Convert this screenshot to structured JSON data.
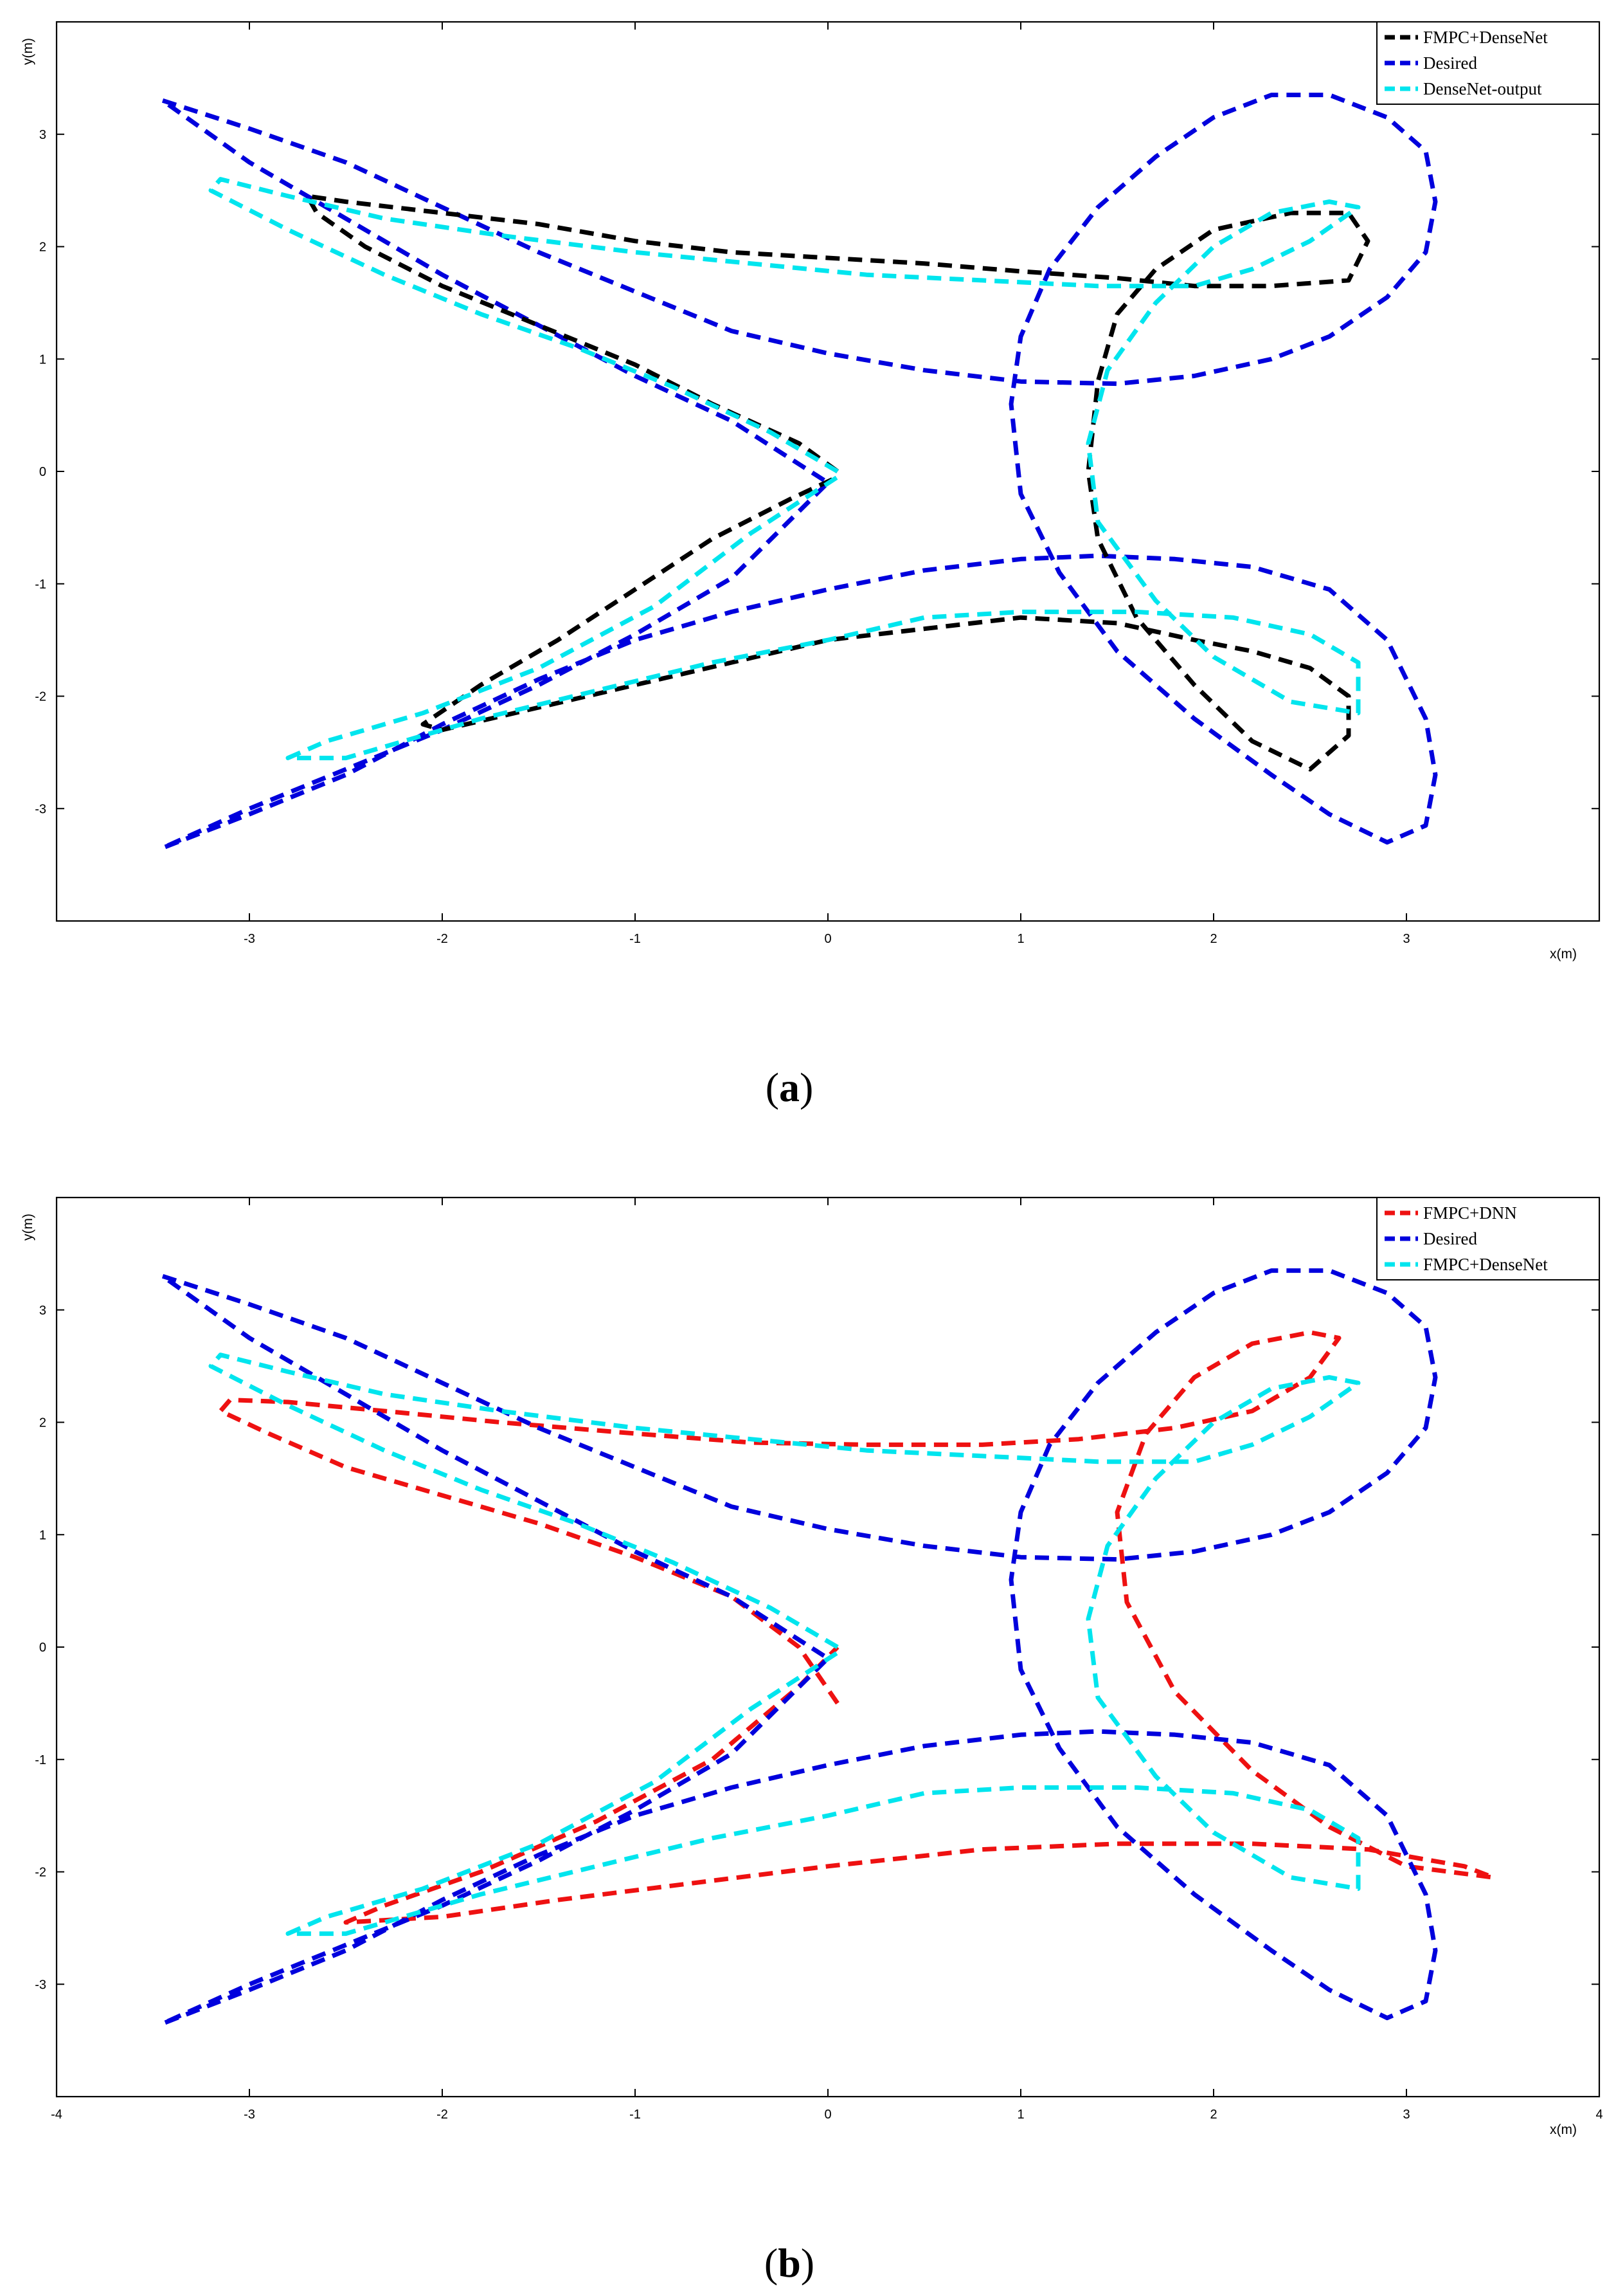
{
  "panels": [
    {
      "label_open": "(",
      "label_letter": "a",
      "label_close": ")"
    },
    {
      "label_open": "(",
      "label_letter": "b",
      "label_close": ")"
    }
  ],
  "chart_data": [
    {
      "type": "line",
      "xlabel": "x(m)",
      "ylabel": "y(m)",
      "xlim": [
        -4,
        4
      ],
      "ylim": [
        -4,
        4
      ],
      "xticks": [
        -3,
        -2,
        -1,
        0,
        1,
        2,
        3
      ],
      "yticks": [
        -3,
        -2,
        -1,
        0,
        1,
        2,
        3
      ],
      "legend_position": "top-right",
      "grid": false,
      "series": [
        {
          "name": "Desired",
          "color": "#0000dd",
          "x": [
            -3.45,
            -3.0,
            -2.5,
            -2.0,
            -1.5,
            -1.0,
            -0.5,
            0.0,
            0.5,
            1.0,
            1.5,
            1.9,
            2.3,
            2.6,
            2.9,
            3.1,
            3.15,
            3.1,
            2.9,
            2.6,
            2.3,
            2.0,
            1.7,
            1.4,
            1.15,
            1.0,
            0.95,
            1.0,
            1.2,
            1.5,
            1.9,
            2.3,
            2.6,
            2.9,
            3.1,
            3.15,
            3.1,
            2.9,
            2.6,
            2.2,
            1.8,
            1.4,
            1.0,
            0.5,
            0.0,
            -0.5,
            -1.0,
            -1.5,
            -2.0,
            -2.5,
            -3.0,
            -3.45,
            -3.0,
            -2.5,
            -2.0,
            -1.5,
            -1.0,
            -0.5,
            0.0,
            -0.5,
            -1.0,
            -1.5,
            -2.0,
            -2.5,
            -3.0,
            -3.45
          ],
          "y": [
            3.3,
            3.05,
            2.75,
            2.35,
            1.95,
            1.6,
            1.25,
            1.05,
            0.9,
            0.8,
            0.78,
            0.85,
            1.0,
            1.2,
            1.55,
            1.95,
            2.4,
            2.85,
            3.15,
            3.35,
            3.35,
            3.15,
            2.8,
            2.35,
            1.8,
            1.2,
            0.6,
            -0.2,
            -0.9,
            -1.6,
            -2.2,
            -2.7,
            -3.05,
            -3.3,
            -3.15,
            -2.7,
            -2.2,
            -1.5,
            -1.05,
            -0.85,
            -0.78,
            -0.75,
            -0.78,
            -0.88,
            -1.05,
            -1.25,
            -1.5,
            -1.85,
            -2.25,
            -2.7,
            -3.05,
            -3.35,
            -3.0,
            -2.65,
            -2.3,
            -1.9,
            -1.45,
            -0.95,
            -0.1,
            0.45,
            0.85,
            1.3,
            1.75,
            2.25,
            2.75,
            3.3
          ]
        },
        {
          "name": "FMPC+DenseNet",
          "color": "#000000",
          "x": [
            0.05,
            -0.15,
            -0.6,
            -1.0,
            -1.5,
            -2.0,
            -2.4,
            -2.65,
            -2.7,
            -2.5,
            -2.0,
            -1.5,
            -1.0,
            -0.5,
            0.0,
            0.5,
            1.0,
            1.5,
            1.9,
            2.3,
            2.7,
            2.8,
            2.7,
            2.4,
            2.0,
            1.7,
            1.5,
            1.4,
            1.35,
            1.4,
            1.6,
            1.9,
            2.2,
            2.5,
            2.7,
            2.7,
            2.5,
            2.2,
            1.9,
            1.5,
            1.0,
            0.5,
            0.0,
            -0.5,
            -1.0,
            -1.5,
            -2.0,
            -2.1,
            -1.8,
            -1.4,
            -1.0,
            -0.6,
            -0.2,
            0.05
          ],
          "y": [
            0.0,
            0.25,
            0.6,
            0.95,
            1.3,
            1.65,
            2.0,
            2.3,
            2.45,
            2.4,
            2.3,
            2.2,
            2.05,
            1.95,
            1.9,
            1.85,
            1.78,
            1.72,
            1.65,
            1.65,
            1.7,
            2.05,
            2.3,
            2.3,
            2.15,
            1.8,
            1.4,
            0.8,
            0.0,
            -0.6,
            -1.3,
            -1.9,
            -2.4,
            -2.65,
            -2.35,
            -2.0,
            -1.75,
            -1.6,
            -1.5,
            -1.35,
            -1.3,
            -1.4,
            -1.5,
            -1.7,
            -1.9,
            -2.1,
            -2.3,
            -2.25,
            -1.9,
            -1.5,
            -1.05,
            -0.6,
            -0.25,
            -0.05
          ]
        },
        {
          "name": "DenseNet-output",
          "color": "#00e5ee",
          "x": [
            0.05,
            -0.3,
            -0.8,
            -1.3,
            -1.8,
            -2.3,
            -2.8,
            -3.2,
            -3.15,
            -2.8,
            -2.3,
            -1.7,
            -1.0,
            -0.4,
            0.2,
            0.8,
            1.4,
            1.9,
            2.2,
            2.5,
            2.75,
            2.6,
            2.3,
            2.0,
            1.7,
            1.45,
            1.35,
            1.4,
            1.7,
            2.0,
            2.4,
            2.75,
            2.75,
            2.5,
            2.1,
            1.6,
            1.0,
            0.5,
            0.0,
            -0.6,
            -1.2,
            -1.8,
            -2.5,
            -2.8,
            -2.6,
            -2.1,
            -1.5,
            -0.9,
            -0.4,
            0.05
          ],
          "y": [
            0.0,
            0.35,
            0.75,
            1.1,
            1.4,
            1.75,
            2.15,
            2.5,
            2.6,
            2.45,
            2.25,
            2.1,
            1.95,
            1.85,
            1.75,
            1.7,
            1.65,
            1.65,
            1.8,
            2.05,
            2.35,
            2.4,
            2.3,
            2.0,
            1.5,
            0.9,
            0.25,
            -0.45,
            -1.15,
            -1.65,
            -2.05,
            -2.15,
            -1.7,
            -1.45,
            -1.3,
            -1.25,
            -1.25,
            -1.3,
            -1.5,
            -1.7,
            -1.95,
            -2.2,
            -2.55,
            -2.55,
            -2.4,
            -2.15,
            -1.75,
            -1.2,
            -0.55,
            -0.05
          ]
        }
      ]
    },
    {
      "type": "line",
      "xlabel": "x(m)",
      "ylabel": "y(m)",
      "xlim": [
        -4,
        4
      ],
      "ylim": [
        -4,
        4
      ],
      "xticks": [
        -4,
        -3,
        -2,
        -1,
        0,
        1,
        2,
        3,
        4
      ],
      "yticks": [
        -3,
        -2,
        -1,
        0,
        1,
        2,
        3
      ],
      "legend_position": "top-right",
      "grid": false,
      "series": [
        {
          "name": "FMPC+DNN",
          "color": "#ee1111",
          "x": [
            0.05,
            -0.15,
            -0.5,
            -1.0,
            -1.5,
            -2.0,
            -2.5,
            -2.9,
            -3.15,
            -3.1,
            -2.8,
            -2.3,
            -1.7,
            -1.0,
            -0.4,
            0.2,
            0.8,
            1.3,
            1.8,
            2.2,
            2.5,
            2.65,
            2.5,
            2.2,
            1.9,
            1.65,
            1.5,
            1.55,
            1.8,
            2.2,
            2.6,
            3.0,
            3.45,
            3.3,
            2.8,
            2.2,
            1.5,
            0.8,
            0.0,
            -0.7,
            -1.4,
            -2.0,
            -2.5,
            -2.3,
            -1.8,
            -1.2,
            -0.6,
            -0.15,
            0.05
          ],
          "y": [
            -0.5,
            0.0,
            0.45,
            0.8,
            1.1,
            1.35,
            1.6,
            1.9,
            2.1,
            2.2,
            2.18,
            2.1,
            2.0,
            1.9,
            1.82,
            1.8,
            1.8,
            1.85,
            1.95,
            2.1,
            2.4,
            2.75,
            2.8,
            2.7,
            2.4,
            1.9,
            1.2,
            0.4,
            -0.4,
            -1.1,
            -1.6,
            -1.95,
            -2.05,
            -1.95,
            -1.8,
            -1.75,
            -1.75,
            -1.8,
            -1.95,
            -2.1,
            -2.25,
            -2.4,
            -2.45,
            -2.3,
            -2.0,
            -1.55,
            -1.0,
            -0.35,
            0.0
          ]
        },
        {
          "name": "Desired",
          "color": "#0000dd",
          "x": [
            -3.45,
            -3.0,
            -2.5,
            -2.0,
            -1.5,
            -1.0,
            -0.5,
            0.0,
            0.5,
            1.0,
            1.5,
            1.9,
            2.3,
            2.6,
            2.9,
            3.1,
            3.15,
            3.1,
            2.9,
            2.6,
            2.3,
            2.0,
            1.7,
            1.4,
            1.15,
            1.0,
            0.95,
            1.0,
            1.2,
            1.5,
            1.9,
            2.3,
            2.6,
            2.9,
            3.1,
            3.15,
            3.1,
            2.9,
            2.6,
            2.2,
            1.8,
            1.4,
            1.0,
            0.5,
            0.0,
            -0.5,
            -1.0,
            -1.5,
            -2.0,
            -2.5,
            -3.0,
            -3.45,
            -3.0,
            -2.5,
            -2.0,
            -1.5,
            -1.0,
            -0.5,
            0.0,
            -0.5,
            -1.0,
            -1.5,
            -2.0,
            -2.5,
            -3.0,
            -3.45
          ],
          "y": [
            3.3,
            3.05,
            2.75,
            2.35,
            1.95,
            1.6,
            1.25,
            1.05,
            0.9,
            0.8,
            0.78,
            0.85,
            1.0,
            1.2,
            1.55,
            1.95,
            2.4,
            2.85,
            3.15,
            3.35,
            3.35,
            3.15,
            2.8,
            2.35,
            1.8,
            1.2,
            0.6,
            -0.2,
            -0.9,
            -1.6,
            -2.2,
            -2.7,
            -3.05,
            -3.3,
            -3.15,
            -2.7,
            -2.2,
            -1.5,
            -1.05,
            -0.85,
            -0.78,
            -0.75,
            -0.78,
            -0.88,
            -1.05,
            -1.25,
            -1.5,
            -1.85,
            -2.25,
            -2.7,
            -3.05,
            -3.35,
            -3.0,
            -2.65,
            -2.3,
            -1.9,
            -1.45,
            -0.95,
            -0.1,
            0.45,
            0.85,
            1.3,
            1.75,
            2.25,
            2.75,
            3.3
          ]
        },
        {
          "name": "FMPC+DenseNet",
          "color": "#00e5ee",
          "x": [
            0.05,
            -0.3,
            -0.8,
            -1.3,
            -1.8,
            -2.3,
            -2.8,
            -3.2,
            -3.15,
            -2.8,
            -2.3,
            -1.7,
            -1.0,
            -0.4,
            0.2,
            0.8,
            1.4,
            1.9,
            2.2,
            2.5,
            2.75,
            2.6,
            2.3,
            2.0,
            1.7,
            1.45,
            1.35,
            1.4,
            1.7,
            2.0,
            2.4,
            2.75,
            2.75,
            2.5,
            2.1,
            1.6,
            1.0,
            0.5,
            0.0,
            -0.6,
            -1.2,
            -1.8,
            -2.5,
            -2.8,
            -2.6,
            -2.1,
            -1.5,
            -0.9,
            -0.4,
            0.05
          ],
          "y": [
            0.0,
            0.35,
            0.75,
            1.1,
            1.4,
            1.75,
            2.15,
            2.5,
            2.6,
            2.45,
            2.25,
            2.1,
            1.95,
            1.85,
            1.75,
            1.7,
            1.65,
            1.65,
            1.8,
            2.05,
            2.35,
            2.4,
            2.3,
            2.0,
            1.5,
            0.9,
            0.25,
            -0.45,
            -1.15,
            -1.65,
            -2.05,
            -2.15,
            -1.7,
            -1.45,
            -1.3,
            -1.25,
            -1.25,
            -1.3,
            -1.5,
            -1.7,
            -1.95,
            -2.2,
            -2.55,
            -2.55,
            -2.4,
            -2.15,
            -1.75,
            -1.2,
            -0.55,
            -0.05
          ]
        }
      ]
    }
  ]
}
